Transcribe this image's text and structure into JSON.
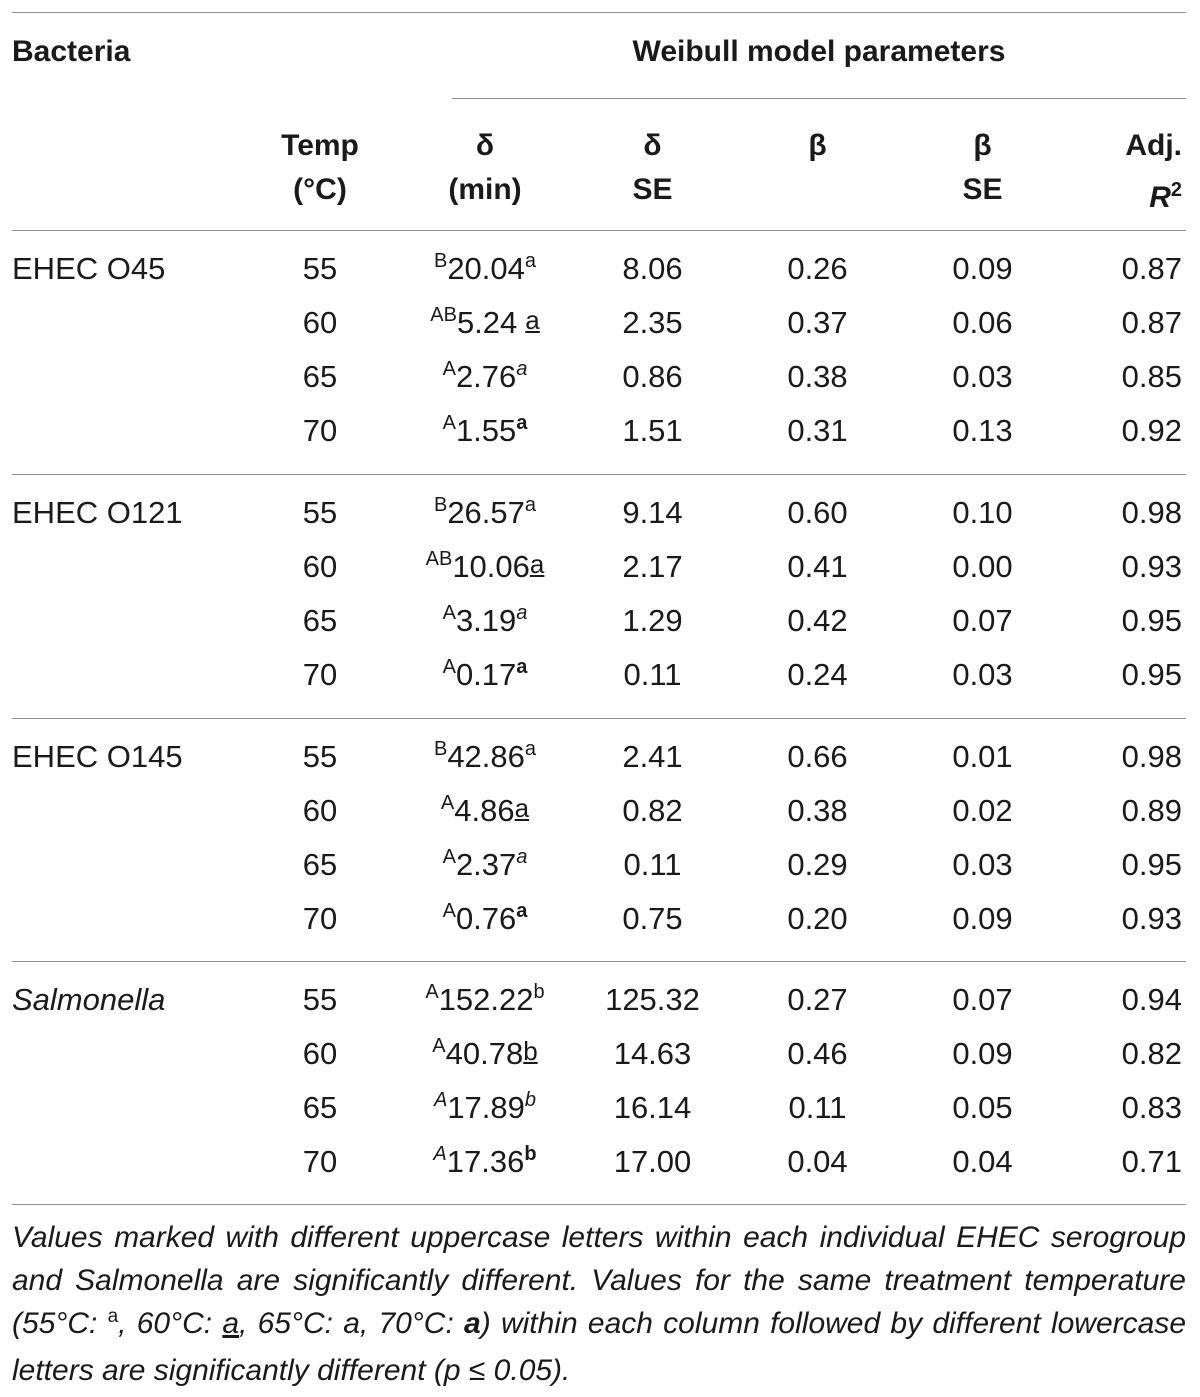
{
  "headers": {
    "bacteria": "Bacteria",
    "group": "Weibull model parameters",
    "temp_l1": "Temp",
    "temp_l2": "(°C)",
    "delta_l1": "δ",
    "delta_l2": "(min)",
    "delta_se_l1": "δ",
    "delta_se_l2": "SE",
    "beta": "β",
    "beta_se_l1": "β",
    "beta_se_l2": "SE",
    "adj_l1": "Adj.",
    "adj_r": "R",
    "adj_sup": "2"
  },
  "groups": [
    {
      "name": "EHEC O45",
      "italic": false,
      "rows": [
        {
          "temp": "55",
          "pre": "B",
          "delta": "20.04",
          "post": "a",
          "post_style": "plain",
          "gap": false,
          "delta_se": "8.06",
          "beta": "0.26",
          "beta_se": "0.09",
          "adj_r2": "0.87"
        },
        {
          "temp": "60",
          "pre": "AB",
          "delta": "5.24",
          "post": "a",
          "post_style": "under",
          "gap": true,
          "delta_se": "2.35",
          "beta": "0.37",
          "beta_se": "0.06",
          "adj_r2": "0.87"
        },
        {
          "temp": "65",
          "pre": "A",
          "delta": "2.76",
          "post": "a",
          "post_style": "ital",
          "gap": false,
          "delta_se": "0.86",
          "beta": "0.38",
          "beta_se": "0.03",
          "adj_r2": "0.85"
        },
        {
          "temp": "70",
          "pre": "A",
          "delta": "1.55",
          "post": "a",
          "post_style": "bold",
          "gap": false,
          "delta_se": "1.51",
          "beta": "0.31",
          "beta_se": "0.13",
          "adj_r2": "0.92"
        }
      ]
    },
    {
      "name": "EHEC O121",
      "italic": false,
      "rows": [
        {
          "temp": "55",
          "pre": "B",
          "delta": "26.57",
          "post": "a",
          "post_style": "plain",
          "gap": false,
          "delta_se": "9.14",
          "beta": "0.60",
          "beta_se": "0.10",
          "adj_r2": "0.98"
        },
        {
          "temp": "60",
          "pre": "AB",
          "delta": "10.06",
          "post": "a",
          "post_style": "under",
          "gap": false,
          "delta_se": "2.17",
          "beta": "0.41",
          "beta_se": "0.00",
          "adj_r2": "0.93"
        },
        {
          "temp": "65",
          "pre": "A",
          "delta": "3.19",
          "post": "a",
          "post_style": "ital",
          "gap": false,
          "delta_se": "1.29",
          "beta": "0.42",
          "beta_se": "0.07",
          "adj_r2": "0.95"
        },
        {
          "temp": "70",
          "pre": "A",
          "delta": "0.17",
          "post": "a",
          "post_style": "bold",
          "gap": false,
          "delta_se": "0.11",
          "beta": "0.24",
          "beta_se": "0.03",
          "adj_r2": "0.95"
        }
      ]
    },
    {
      "name": "EHEC O145",
      "italic": false,
      "rows": [
        {
          "temp": "55",
          "pre": "B",
          "delta": "42.86",
          "post": "a",
          "post_style": "plain",
          "gap": false,
          "delta_se": "2.41",
          "beta": "0.66",
          "beta_se": "0.01",
          "adj_r2": "0.98"
        },
        {
          "temp": "60",
          "pre": "A",
          "delta": "4.86",
          "post": "a",
          "post_style": "under",
          "gap": false,
          "delta_se": "0.82",
          "beta": "0.38",
          "beta_se": "0.02",
          "adj_r2": "0.89"
        },
        {
          "temp": "65",
          "pre": "A",
          "delta": "2.37",
          "post": "a",
          "post_style": "ital",
          "gap": false,
          "delta_se": "0.11",
          "beta": "0.29",
          "beta_se": "0.03",
          "adj_r2": "0.95"
        },
        {
          "temp": "70",
          "pre": "A",
          "delta": "0.76",
          "post": "a",
          "post_style": "bold",
          "gap": false,
          "delta_se": "0.75",
          "beta": "0.20",
          "beta_se": "0.09",
          "adj_r2": "0.93"
        }
      ]
    },
    {
      "name": "Salmonella",
      "italic": true,
      "rows": [
        {
          "temp": "55",
          "pre": "A",
          "pre_style": "plain",
          "delta": "152.22",
          "post": "b",
          "post_style": "plain",
          "gap": false,
          "delta_se": "125.32",
          "beta": "0.27",
          "beta_se": "0.07",
          "adj_r2": "0.94"
        },
        {
          "temp": "60",
          "pre": "A",
          "pre_style": "plain",
          "delta": "40.78",
          "post": "b",
          "post_style": "under",
          "gap": false,
          "delta_se": "14.63",
          "beta": "0.46",
          "beta_se": "0.09",
          "adj_r2": "0.82"
        },
        {
          "temp": "65",
          "pre": "A",
          "pre_style": "ital",
          "delta": "17.89",
          "post": "b",
          "post_style": "ital",
          "gap": false,
          "delta_se": "16.14",
          "beta": "0.11",
          "beta_se": "0.05",
          "adj_r2": "0.83"
        },
        {
          "temp": "70",
          "pre": "A",
          "pre_style": "ital",
          "delta": "17.36",
          "post": "b",
          "post_style": "bold",
          "gap": false,
          "delta_se": "17.00",
          "beta": "0.04",
          "beta_se": "0.04",
          "adj_r2": "0.71"
        }
      ]
    }
  ],
  "footnote": {
    "part1": "Values marked with different uppercase letters within each individual EHEC serogroup and Salmonella are significantly different. Values for the same treatment temperature (55°C: ",
    "m1": "a",
    "part2": ", 60°C: ",
    "m2": "a",
    "part3": ", 65°C: a, 70°C: ",
    "m4": "a",
    "part4": ") within each column followed by different lowercase letters are significantly different (p ≤ 0.05)."
  }
}
